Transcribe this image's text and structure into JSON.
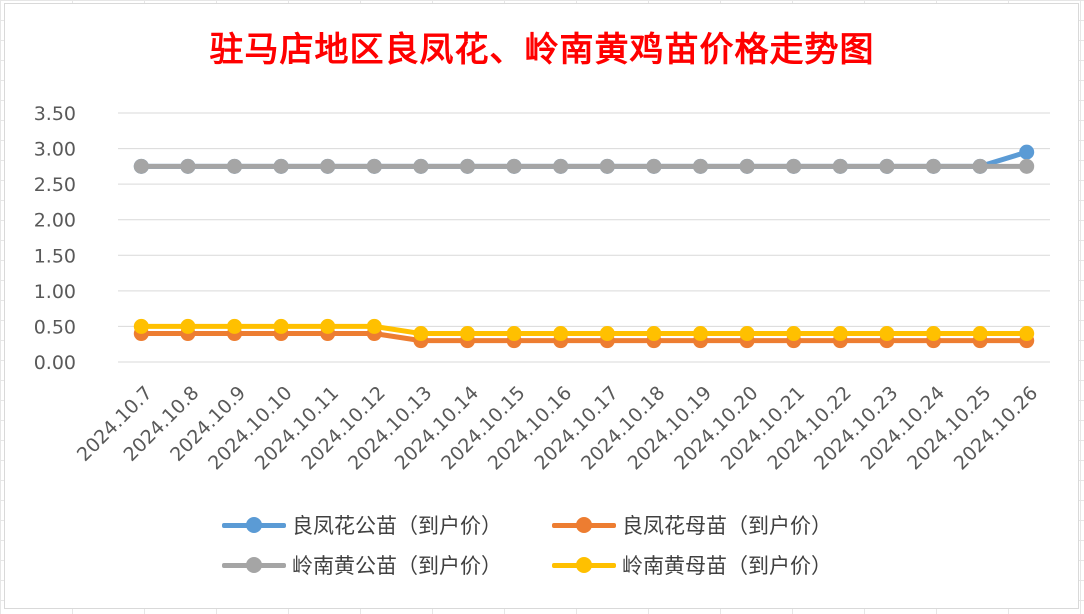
{
  "chart_data": {
    "type": "line",
    "title": "驻马店地区良凤花、岭南黄鸡苗价格走势图",
    "xlabel": "",
    "ylabel": "",
    "ylim": [
      0,
      3.5
    ],
    "yticks": [
      "0.00",
      "0.50",
      "1.00",
      "1.50",
      "2.00",
      "2.50",
      "3.00",
      "3.50"
    ],
    "grid": true,
    "legend_position": "bottom",
    "categories": [
      "2024.10.7",
      "2024.10.8",
      "2024.10.9",
      "2024.10.10",
      "2024.10.11",
      "2024.10.12",
      "2024.10.13",
      "2024.10.14",
      "2024.10.15",
      "2024.10.16",
      "2024.10.17",
      "2024.10.18",
      "2024.10.19",
      "2024.10.20",
      "2024.10.21",
      "2024.10.22",
      "2024.10.23",
      "2024.10.24",
      "2024.10.25",
      "2024.10.26"
    ],
    "series": [
      {
        "name": "良凤花公苗（到户价）",
        "color": "#5b9bd5",
        "values": [
          2.75,
          2.75,
          2.75,
          2.75,
          2.75,
          2.75,
          2.75,
          2.75,
          2.75,
          2.75,
          2.75,
          2.75,
          2.75,
          2.75,
          2.75,
          2.75,
          2.75,
          2.75,
          2.75,
          2.95
        ]
      },
      {
        "name": "良凤花母苗（到户价）",
        "color": "#ed7d31",
        "values": [
          0.4,
          0.4,
          0.4,
          0.4,
          0.4,
          0.4,
          0.3,
          0.3,
          0.3,
          0.3,
          0.3,
          0.3,
          0.3,
          0.3,
          0.3,
          0.3,
          0.3,
          0.3,
          0.3,
          0.3
        ]
      },
      {
        "name": "岭南黄公苗（到户价）",
        "color": "#a5a5a5",
        "values": [
          2.75,
          2.75,
          2.75,
          2.75,
          2.75,
          2.75,
          2.75,
          2.75,
          2.75,
          2.75,
          2.75,
          2.75,
          2.75,
          2.75,
          2.75,
          2.75,
          2.75,
          2.75,
          2.75,
          2.75
        ]
      },
      {
        "name": "岭南黄母苗（到户价）",
        "color": "#ffc000",
        "values": [
          0.5,
          0.5,
          0.5,
          0.5,
          0.5,
          0.5,
          0.4,
          0.4,
          0.4,
          0.4,
          0.4,
          0.4,
          0.4,
          0.4,
          0.4,
          0.4,
          0.4,
          0.4,
          0.4,
          0.4
        ]
      }
    ]
  }
}
